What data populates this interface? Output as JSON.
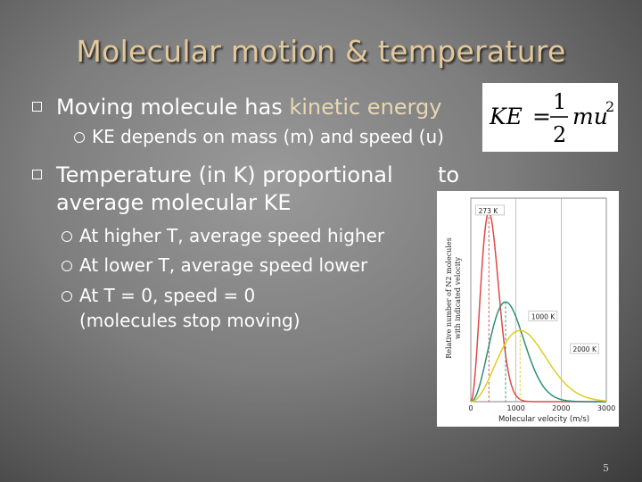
{
  "slide": {
    "title": "Molecular motion & temperature",
    "page_number": "5",
    "bullet1": {
      "text_a": "Moving molecule has ",
      "text_b": "kinetic energy",
      "sub": "KE depends on mass (m) and speed (u)"
    },
    "bullet2": {
      "line1": "Temperature (in K) proportional",
      "line1b": "to",
      "line2": "average molecular KE",
      "subs": [
        "At higher T, average speed higher",
        "At lower T, average speed lower",
        "At T = 0, speed = 0",
        "(molecules stop moving)"
      ]
    },
    "formula": {
      "lhs": "KE",
      "eq": "=",
      "num": "1",
      "den": "2",
      "var": "mu",
      "exp": "2"
    }
  },
  "chart_data": {
    "type": "line",
    "title": "",
    "xlabel": "Molecular velocity (m/s)",
    "ylabel_line1": "Relative number of N2 molecules",
    "ylabel_line2": "with indicated velocity",
    "xlim": [
      0,
      3000
    ],
    "ylim": [
      0,
      1
    ],
    "x_ticks": [
      0,
      1000,
      2000,
      3000
    ],
    "x_tick_labels": [
      "0",
      "1000",
      "2000",
      "3000"
    ],
    "series": [
      {
        "name": "273 K",
        "color": "#e04848",
        "peak_velocity": 400,
        "peak_height": 0.93,
        "label_at": [
          130,
          0.93
        ]
      },
      {
        "name": "1000 K",
        "color": "#2e8f7a",
        "peak_velocity": 770,
        "peak_height": 0.49,
        "label_at": [
          1300,
          0.41
        ]
      },
      {
        "name": "2000 K",
        "color": "#e0cc20",
        "peak_velocity": 1090,
        "peak_height": 0.35,
        "label_at": [
          2220,
          0.25
        ]
      }
    ]
  }
}
